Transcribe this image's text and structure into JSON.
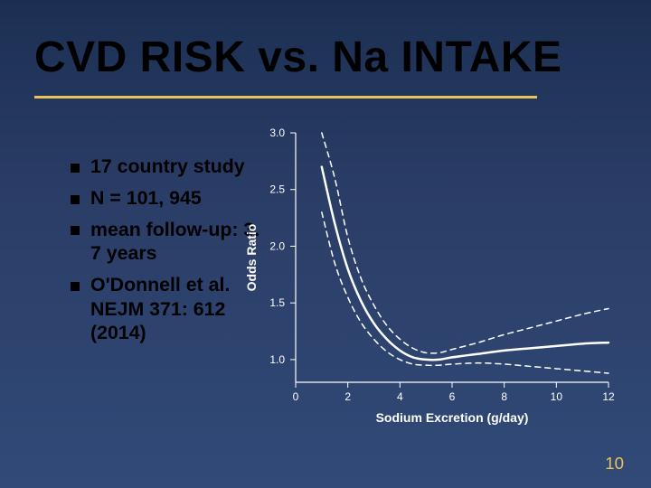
{
  "background_gradient": [
    "#1c2f53",
    "#2a3d66",
    "#314a78"
  ],
  "title": {
    "text": "CVD RISK vs. Na INTAKE",
    "color": "#000000",
    "fontsize_pt": 36
  },
  "underline_color": "#e8c35a",
  "bullets": {
    "font_color": "#000000",
    "font_weight": 700,
    "fontsize_pt": 16,
    "items": [
      "17 country study",
      "N = 101, 945",
      "mean follow-up: 3. 7 years",
      "O'Donnell et al. NEJM 371: 612 (2014)"
    ]
  },
  "page_number": {
    "text": "10",
    "color": "#e8c35a",
    "fontsize_pt": 14
  },
  "chart": {
    "type": "line",
    "background_color": "transparent",
    "axis_color": "#ffffff",
    "tick_color": "#ffffff",
    "axis_label_color": "#ffffff",
    "tick_label_color": "#ffffff",
    "label_fontsize_pt": 14,
    "tick_fontsize_pt": 12,
    "xlabel": "Sodium Excretion (g/day)",
    "ylabel": "Odds Ratio",
    "xlim": [
      0,
      12
    ],
    "ylim": [
      0.8,
      3.0
    ],
    "xticks": [
      0,
      2,
      4,
      6,
      8,
      10,
      12
    ],
    "yticks": [
      1.0,
      1.5,
      2.0,
      2.5,
      3.0
    ],
    "series": [
      {
        "name": "odds-ratio-mean",
        "color": "#ffffff",
        "line_width": 2.5,
        "dash": "solid",
        "x": [
          1.0,
          1.5,
          2.0,
          2.5,
          3.0,
          3.5,
          4.0,
          4.5,
          5.0,
          5.5,
          6.0,
          7.0,
          8.0,
          9.0,
          10.0,
          11.0,
          12.0
        ],
        "y": [
          2.7,
          2.2,
          1.8,
          1.52,
          1.32,
          1.18,
          1.08,
          1.02,
          1.0,
          1.0,
          1.02,
          1.05,
          1.08,
          1.1,
          1.12,
          1.14,
          1.15
        ]
      },
      {
        "name": "odds-ratio-ci-upper",
        "color": "#ffffff",
        "line_width": 1.5,
        "dash": "6,5",
        "x": [
          1.0,
          1.5,
          2.0,
          2.5,
          3.0,
          3.5,
          4.0,
          4.5,
          5.0,
          5.5,
          6.0,
          7.0,
          8.0,
          9.0,
          10.0,
          11.0,
          12.0
        ],
        "y": [
          3.0,
          2.6,
          2.08,
          1.72,
          1.48,
          1.3,
          1.18,
          1.1,
          1.06,
          1.06,
          1.09,
          1.15,
          1.22,
          1.28,
          1.34,
          1.4,
          1.45
        ]
      },
      {
        "name": "odds-ratio-ci-lower",
        "color": "#ffffff",
        "line_width": 1.5,
        "dash": "6,5",
        "x": [
          1.0,
          1.5,
          2.0,
          2.5,
          3.0,
          3.5,
          4.0,
          4.5,
          5.0,
          5.5,
          6.0,
          7.0,
          8.0,
          9.0,
          10.0,
          11.0,
          12.0
        ],
        "y": [
          2.3,
          1.85,
          1.55,
          1.33,
          1.18,
          1.07,
          1.0,
          0.96,
          0.95,
          0.95,
          0.96,
          0.97,
          0.96,
          0.94,
          0.92,
          0.9,
          0.88
        ]
      }
    ]
  }
}
